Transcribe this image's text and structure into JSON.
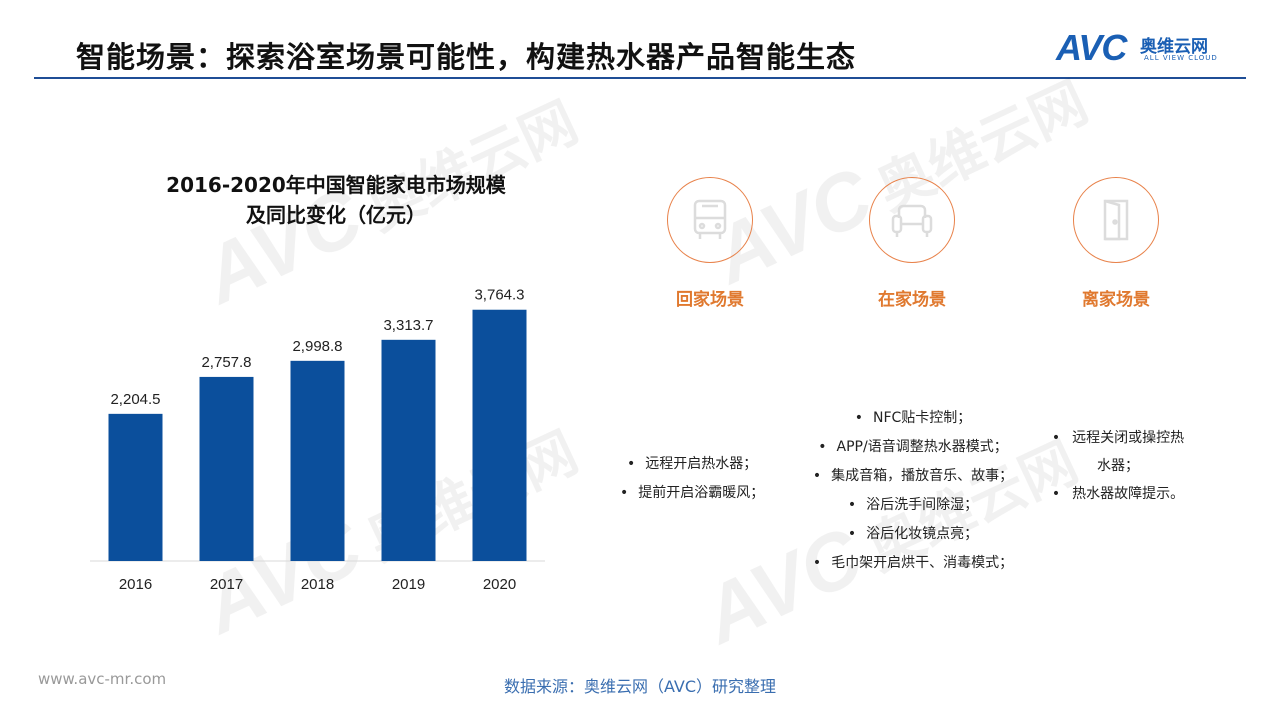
{
  "header": {
    "title": "智能场景：探索浴室场景可能性，构建热水器产品智能生态",
    "logo_avc": "AVC",
    "logo_cn": "奥维云网",
    "logo_en": "ALL VIEW CLOUD"
  },
  "watermark": {
    "avc": "AVC",
    "cn": "奥维云网"
  },
  "chart_data": {
    "type": "bar",
    "title_line1": "2016-2020年中国智能家电市场规模",
    "title_line2": "及同比变化（亿元）",
    "categories": [
      "2016",
      "2017",
      "2018",
      "2019",
      "2020"
    ],
    "values": [
      2204.5,
      2757.8,
      2998.8,
      3313.7,
      3764.3
    ],
    "value_labels": [
      "2,204.5",
      "2,757.8",
      "2,998.8",
      "3,313.7",
      "3,764.3"
    ],
    "ylim": [
      0,
      4000
    ],
    "bar_color": "#0b4f9c",
    "grid": false
  },
  "scenes": [
    {
      "label": "回家场景",
      "icon": "bus-icon",
      "items": [
        "远程开启热水器；",
        "提前开启浴霸暖风；"
      ]
    },
    {
      "label": "在家场景",
      "icon": "sofa-icon",
      "items": [
        "NFC贴卡控制；",
        "APP/语音调整热水器模式；",
        "集成音箱，播放音乐、故事；",
        "浴后洗手间除湿；",
        "浴后化妆镜点亮；",
        "毛巾架开启烘干、消毒模式；"
      ]
    },
    {
      "label": "离家场景",
      "icon": "door-icon",
      "items": [
        "远程关闭或操控热水器；",
        "热水器故障提示。"
      ]
    }
  ],
  "accent_color": "#e0792f",
  "footer": {
    "url": "www.avc-mr.com",
    "source": "数据来源：奥维云网（AVC）研究整理"
  }
}
